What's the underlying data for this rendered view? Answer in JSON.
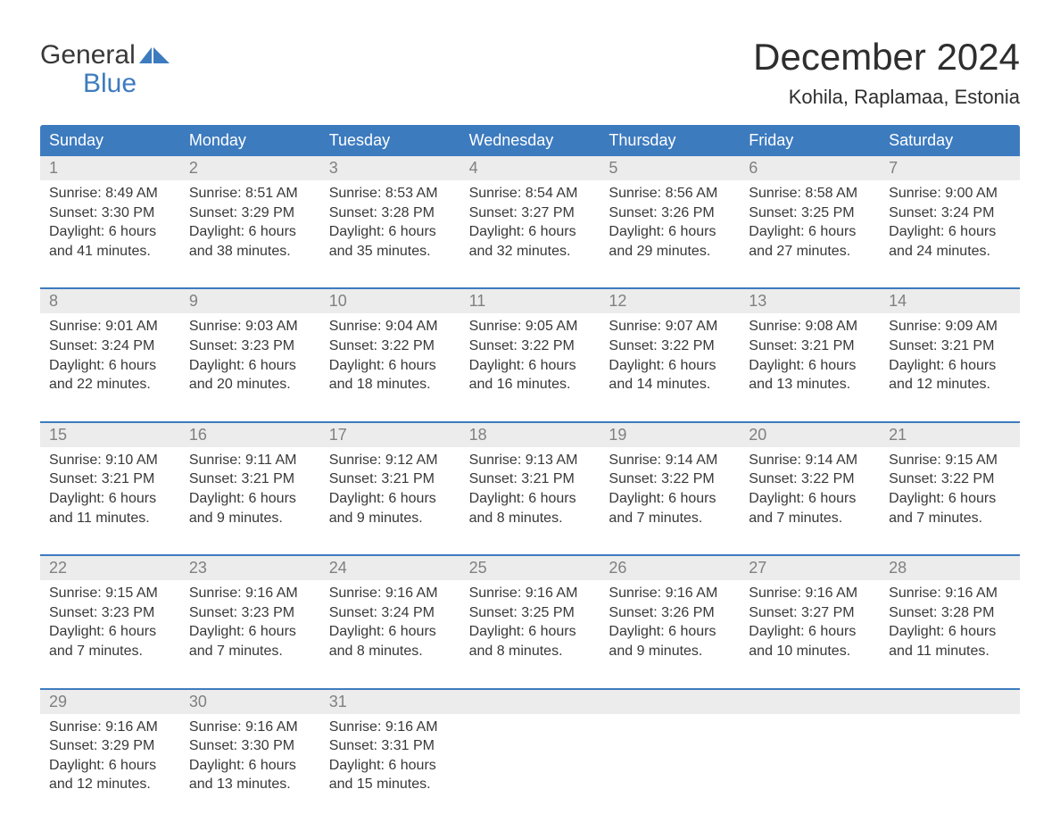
{
  "logo": {
    "line1": "General",
    "line2": "Blue"
  },
  "title": "December 2024",
  "location": "Kohila, Raplamaa, Estonia",
  "colors": {
    "header_bg": "#3d7bbf",
    "header_text": "#ffffff",
    "daynum_bg": "#ececec",
    "daynum_text": "#808080",
    "body_text": "#383838",
    "logo_blue": "#3d7bbf",
    "page_bg": "#ffffff"
  },
  "fonts": {
    "title_pt": 42,
    "location_pt": 22,
    "dayheader_pt": 18,
    "daynum_pt": 18,
    "cell_pt": 16,
    "logo_pt": 30
  },
  "day_names": [
    "Sunday",
    "Monday",
    "Tuesday",
    "Wednesday",
    "Thursday",
    "Friday",
    "Saturday"
  ],
  "weeks": [
    [
      {
        "n": "1",
        "sunrise": "8:49 AM",
        "sunset": "3:30 PM",
        "dl1": "Daylight: 6 hours",
        "dl2": "and 41 minutes."
      },
      {
        "n": "2",
        "sunrise": "8:51 AM",
        "sunset": "3:29 PM",
        "dl1": "Daylight: 6 hours",
        "dl2": "and 38 minutes."
      },
      {
        "n": "3",
        "sunrise": "8:53 AM",
        "sunset": "3:28 PM",
        "dl1": "Daylight: 6 hours",
        "dl2": "and 35 minutes."
      },
      {
        "n": "4",
        "sunrise": "8:54 AM",
        "sunset": "3:27 PM",
        "dl1": "Daylight: 6 hours",
        "dl2": "and 32 minutes."
      },
      {
        "n": "5",
        "sunrise": "8:56 AM",
        "sunset": "3:26 PM",
        "dl1": "Daylight: 6 hours",
        "dl2": "and 29 minutes."
      },
      {
        "n": "6",
        "sunrise": "8:58 AM",
        "sunset": "3:25 PM",
        "dl1": "Daylight: 6 hours",
        "dl2": "and 27 minutes."
      },
      {
        "n": "7",
        "sunrise": "9:00 AM",
        "sunset": "3:24 PM",
        "dl1": "Daylight: 6 hours",
        "dl2": "and 24 minutes."
      }
    ],
    [
      {
        "n": "8",
        "sunrise": "9:01 AM",
        "sunset": "3:24 PM",
        "dl1": "Daylight: 6 hours",
        "dl2": "and 22 minutes."
      },
      {
        "n": "9",
        "sunrise": "9:03 AM",
        "sunset": "3:23 PM",
        "dl1": "Daylight: 6 hours",
        "dl2": "and 20 minutes."
      },
      {
        "n": "10",
        "sunrise": "9:04 AM",
        "sunset": "3:22 PM",
        "dl1": "Daylight: 6 hours",
        "dl2": "and 18 minutes."
      },
      {
        "n": "11",
        "sunrise": "9:05 AM",
        "sunset": "3:22 PM",
        "dl1": "Daylight: 6 hours",
        "dl2": "and 16 minutes."
      },
      {
        "n": "12",
        "sunrise": "9:07 AM",
        "sunset": "3:22 PM",
        "dl1": "Daylight: 6 hours",
        "dl2": "and 14 minutes."
      },
      {
        "n": "13",
        "sunrise": "9:08 AM",
        "sunset": "3:21 PM",
        "dl1": "Daylight: 6 hours",
        "dl2": "and 13 minutes."
      },
      {
        "n": "14",
        "sunrise": "9:09 AM",
        "sunset": "3:21 PM",
        "dl1": "Daylight: 6 hours",
        "dl2": "and 12 minutes."
      }
    ],
    [
      {
        "n": "15",
        "sunrise": "9:10 AM",
        "sunset": "3:21 PM",
        "dl1": "Daylight: 6 hours",
        "dl2": "and 11 minutes."
      },
      {
        "n": "16",
        "sunrise": "9:11 AM",
        "sunset": "3:21 PM",
        "dl1": "Daylight: 6 hours",
        "dl2": "and 9 minutes."
      },
      {
        "n": "17",
        "sunrise": "9:12 AM",
        "sunset": "3:21 PM",
        "dl1": "Daylight: 6 hours",
        "dl2": "and 9 minutes."
      },
      {
        "n": "18",
        "sunrise": "9:13 AM",
        "sunset": "3:21 PM",
        "dl1": "Daylight: 6 hours",
        "dl2": "and 8 minutes."
      },
      {
        "n": "19",
        "sunrise": "9:14 AM",
        "sunset": "3:22 PM",
        "dl1": "Daylight: 6 hours",
        "dl2": "and 7 minutes."
      },
      {
        "n": "20",
        "sunrise": "9:14 AM",
        "sunset": "3:22 PM",
        "dl1": "Daylight: 6 hours",
        "dl2": "and 7 minutes."
      },
      {
        "n": "21",
        "sunrise": "9:15 AM",
        "sunset": "3:22 PM",
        "dl1": "Daylight: 6 hours",
        "dl2": "and 7 minutes."
      }
    ],
    [
      {
        "n": "22",
        "sunrise": "9:15 AM",
        "sunset": "3:23 PM",
        "dl1": "Daylight: 6 hours",
        "dl2": "and 7 minutes."
      },
      {
        "n": "23",
        "sunrise": "9:16 AM",
        "sunset": "3:23 PM",
        "dl1": "Daylight: 6 hours",
        "dl2": "and 7 minutes."
      },
      {
        "n": "24",
        "sunrise": "9:16 AM",
        "sunset": "3:24 PM",
        "dl1": "Daylight: 6 hours",
        "dl2": "and 8 minutes."
      },
      {
        "n": "25",
        "sunrise": "9:16 AM",
        "sunset": "3:25 PM",
        "dl1": "Daylight: 6 hours",
        "dl2": "and 8 minutes."
      },
      {
        "n": "26",
        "sunrise": "9:16 AM",
        "sunset": "3:26 PM",
        "dl1": "Daylight: 6 hours",
        "dl2": "and 9 minutes."
      },
      {
        "n": "27",
        "sunrise": "9:16 AM",
        "sunset": "3:27 PM",
        "dl1": "Daylight: 6 hours",
        "dl2": "and 10 minutes."
      },
      {
        "n": "28",
        "sunrise": "9:16 AM",
        "sunset": "3:28 PM",
        "dl1": "Daylight: 6 hours",
        "dl2": "and 11 minutes."
      }
    ],
    [
      {
        "n": "29",
        "sunrise": "9:16 AM",
        "sunset": "3:29 PM",
        "dl1": "Daylight: 6 hours",
        "dl2": "and 12 minutes."
      },
      {
        "n": "30",
        "sunrise": "9:16 AM",
        "sunset": "3:30 PM",
        "dl1": "Daylight: 6 hours",
        "dl2": "and 13 minutes."
      },
      {
        "n": "31",
        "sunrise": "9:16 AM",
        "sunset": "3:31 PM",
        "dl1": "Daylight: 6 hours",
        "dl2": "and 15 minutes."
      },
      null,
      null,
      null,
      null
    ]
  ],
  "labels": {
    "sunrise": "Sunrise: ",
    "sunset": "Sunset: "
  }
}
